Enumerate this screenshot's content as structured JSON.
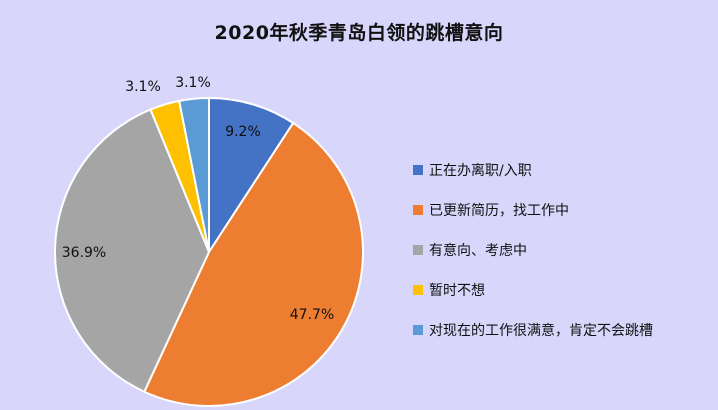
{
  "chart_data": {
    "type": "pie",
    "title": "2020年秋季青岛白领的跳槽意向",
    "slices": [
      {
        "label": "正在办离职/入职",
        "value": 9.2,
        "display": "9.2%",
        "color": "#4472c4"
      },
      {
        "label": "已更新简历，找工作中",
        "value": 47.7,
        "display": "47.7%",
        "color": "#ed7d31"
      },
      {
        "label": "有意向、考虑中",
        "value": 36.9,
        "display": "36.9%",
        "color": "#a5a5a5"
      },
      {
        "label": "暂时不想",
        "value": 3.1,
        "display": "3.1%",
        "color": "#ffc000"
      },
      {
        "label": "对现在的工作很满意，肯定不会跳槽",
        "value": 3.1,
        "display": "3.1%",
        "color": "#5b9bd5"
      }
    ],
    "legend_position": "right"
  }
}
